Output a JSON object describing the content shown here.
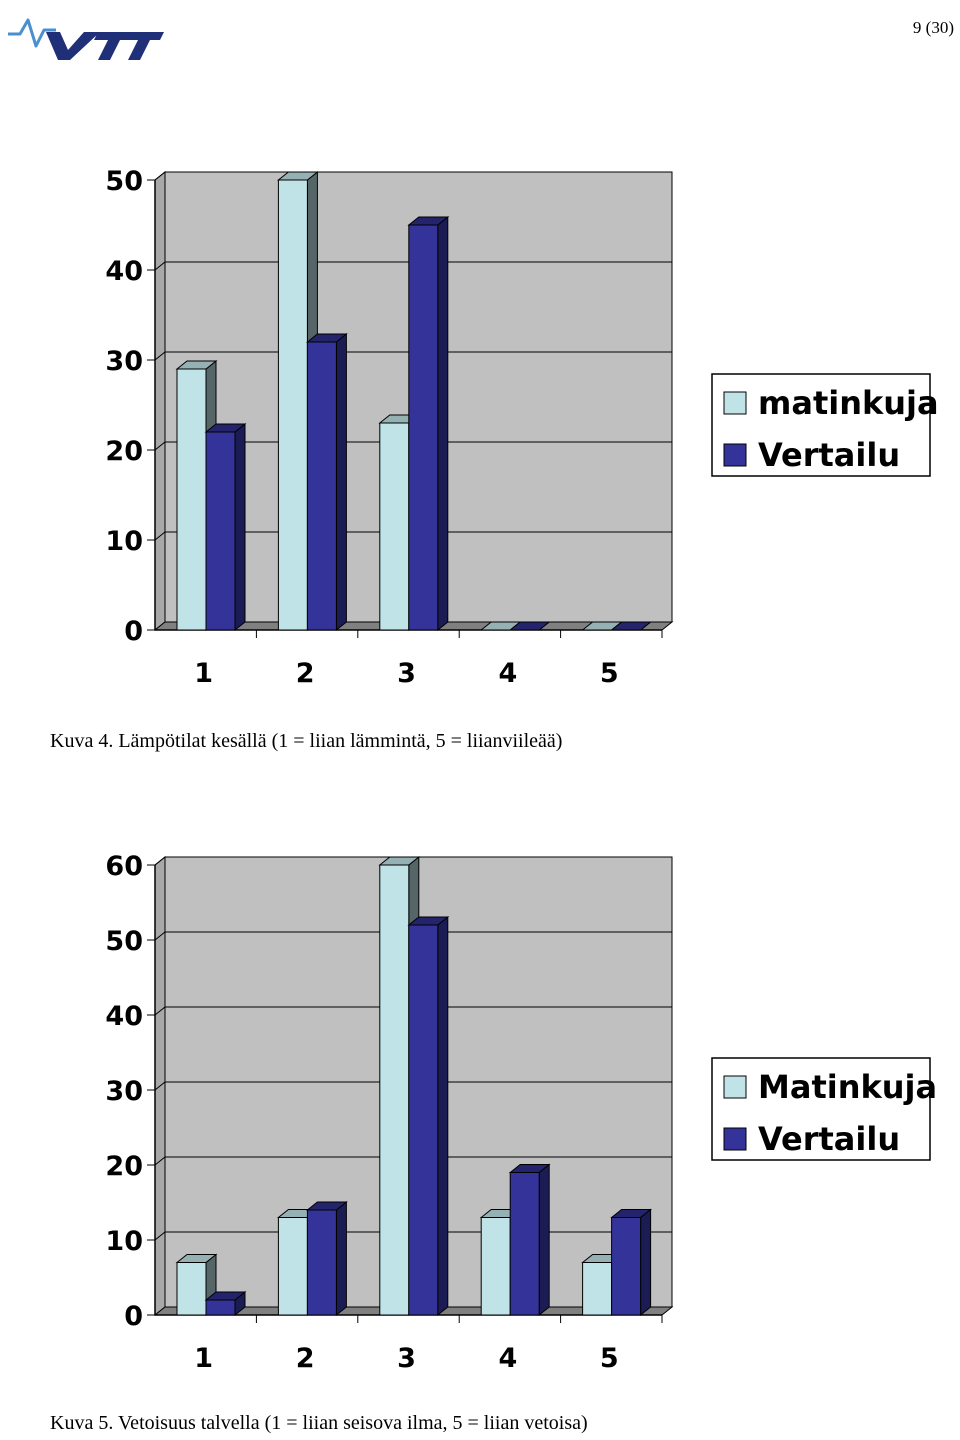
{
  "header": {
    "page_number": "9 (30)",
    "logo_text": "VTT"
  },
  "colors": {
    "series_light": "#bfe3e6",
    "series_dark": "#33339a",
    "plot_bg": "#c0c0c0",
    "wall_side": "#a8a8a8",
    "floor": "#808080"
  },
  "chart_data": [
    {
      "type": "bar",
      "title": "",
      "xlabel": "",
      "ylabel": "",
      "categories": [
        "1",
        "2",
        "3",
        "4",
        "5"
      ],
      "yticks": [
        "0",
        "10",
        "20",
        "30",
        "40",
        "50"
      ],
      "ylim": [
        0,
        50
      ],
      "grid": true,
      "legend_position": "right",
      "series": [
        {
          "name": "matinkuja",
          "values": [
            29,
            50,
            23,
            0,
            0
          ]
        },
        {
          "name": "Vertailu",
          "values": [
            22,
            32,
            45,
            0,
            0
          ]
        }
      ],
      "caption": "Kuva 4. Lämpötilat kesällä (1 = liian lämmintä, 5 = liianviileää)"
    },
    {
      "type": "bar",
      "title": "",
      "xlabel": "",
      "ylabel": "",
      "categories": [
        "1",
        "2",
        "3",
        "4",
        "5"
      ],
      "yticks": [
        "0",
        "10",
        "20",
        "30",
        "40",
        "50",
        "60"
      ],
      "ylim": [
        0,
        60
      ],
      "grid": true,
      "legend_position": "right",
      "series": [
        {
          "name": "Matinkuja",
          "values": [
            7,
            13,
            60,
            13,
            7
          ]
        },
        {
          "name": "Vertailu",
          "values": [
            2,
            14,
            52,
            19,
            13
          ]
        }
      ],
      "caption": "Kuva 5. Vetoisuus talvella (1 = liian seisova ilma, 5 = liian vetoisa)"
    }
  ]
}
